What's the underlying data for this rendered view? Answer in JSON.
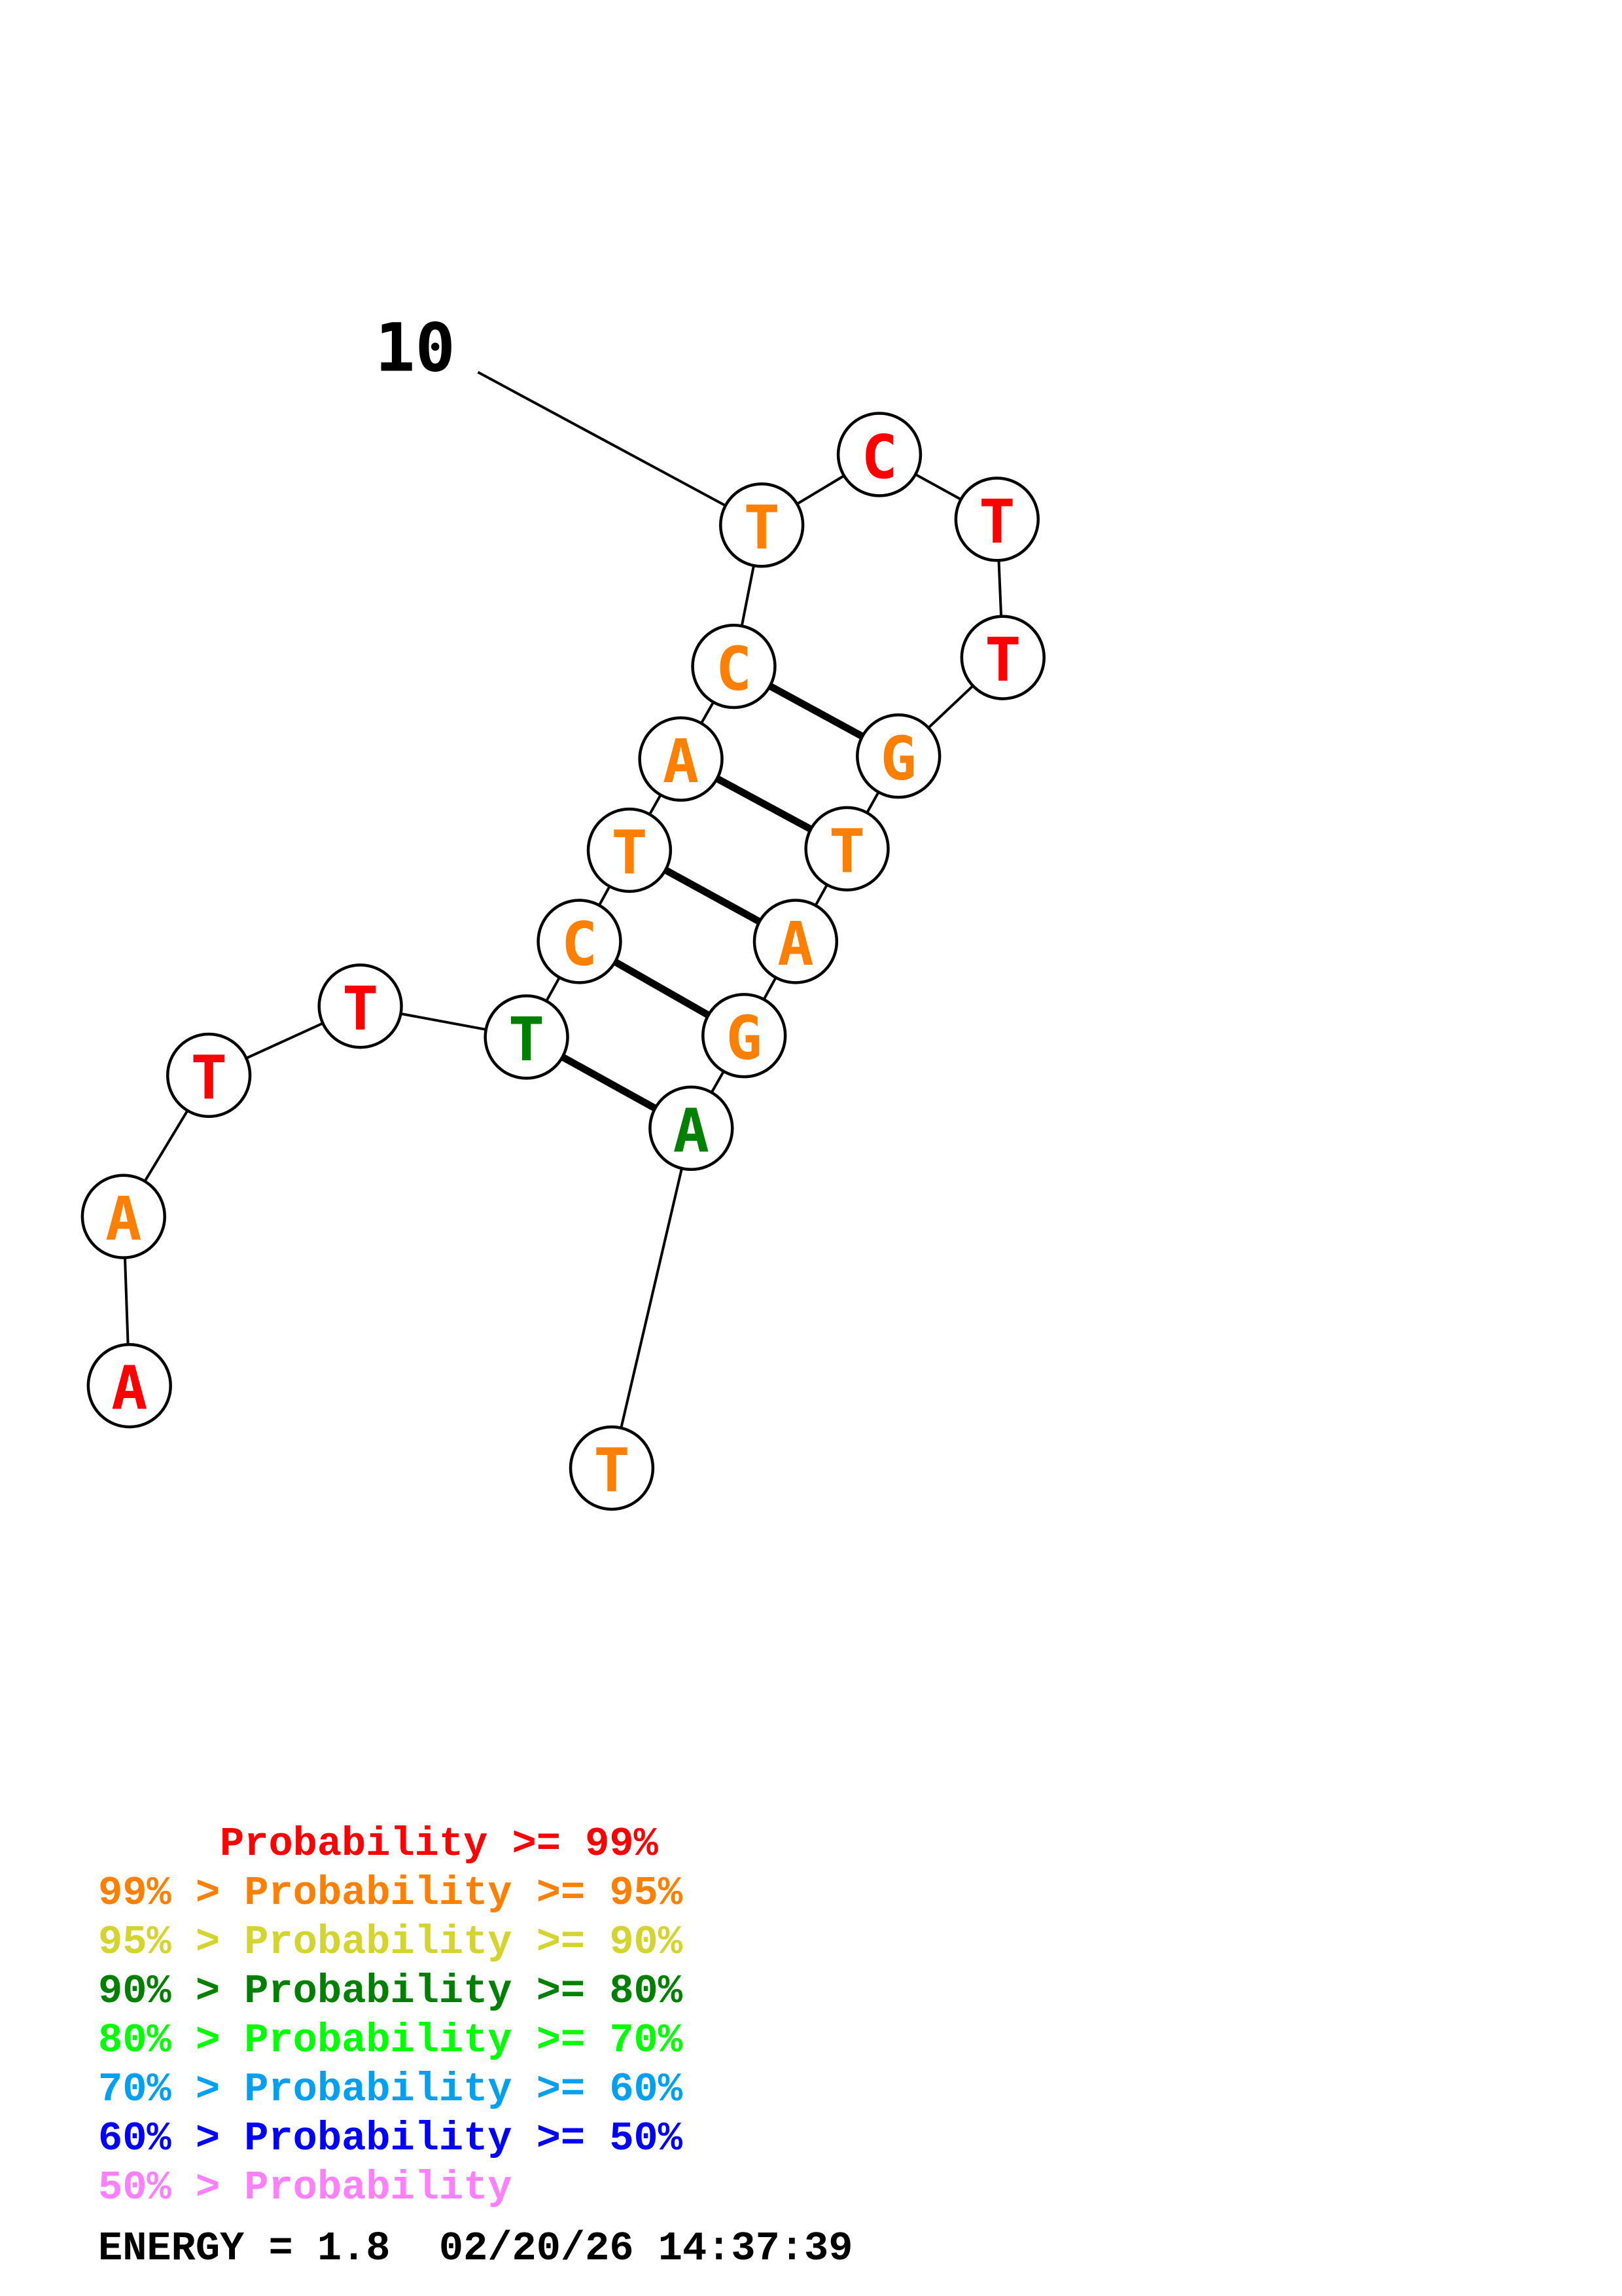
{
  "colors": {
    "p99": "#ff0000",
    "p95": "#ff8000",
    "p90": "#d4d42e",
    "p80": "#008000",
    "p70": "#00ff00",
    "p60": "#00a0f0",
    "p50": "#0000ff",
    "plow": "#ff80ff"
  },
  "sequence": [
    {
      "base": "A",
      "prob": "p99"
    },
    {
      "base": "A",
      "prob": "p95"
    },
    {
      "base": "T",
      "prob": "p99"
    },
    {
      "base": "T",
      "prob": "p99"
    },
    {
      "base": "T",
      "prob": "p80"
    },
    {
      "base": "C",
      "prob": "p95"
    },
    {
      "base": "T",
      "prob": "p95"
    },
    {
      "base": "A",
      "prob": "p95"
    },
    {
      "base": "C",
      "prob": "p95"
    },
    {
      "base": "T",
      "prob": "p95"
    },
    {
      "base": "C",
      "prob": "p99"
    },
    {
      "base": "T",
      "prob": "p99"
    },
    {
      "base": "T",
      "prob": "p99"
    },
    {
      "base": "G",
      "prob": "p95"
    },
    {
      "base": "T",
      "prob": "p95"
    },
    {
      "base": "A",
      "prob": "p95"
    },
    {
      "base": "G",
      "prob": "p95"
    },
    {
      "base": "A",
      "prob": "p80"
    },
    {
      "base": "T",
      "prob": "p95"
    }
  ],
  "pairs": [
    [
      5,
      18
    ],
    [
      6,
      17
    ],
    [
      7,
      16
    ],
    [
      8,
      15
    ],
    [
      9,
      14
    ]
  ],
  "position_labels": [
    {
      "index": 10,
      "text": "10"
    }
  ],
  "legend": [
    {
      "prob": "p99",
      "prefix": "     ",
      "text": "Probability >= 99%"
    },
    {
      "prob": "p95",
      "prefix": "99% > ",
      "text": "Probability >= 95%"
    },
    {
      "prob": "p90",
      "prefix": "95% > ",
      "text": "Probability >= 90%"
    },
    {
      "prob": "p80",
      "prefix": "90% > ",
      "text": "Probability >= 80%"
    },
    {
      "prob": "p70",
      "prefix": "80% > ",
      "text": "Probability >= 70%"
    },
    {
      "prob": "p60",
      "prefix": "70% > ",
      "text": "Probability >= 60%"
    },
    {
      "prob": "p50",
      "prefix": "60% > ",
      "text": "Probability >= 50%"
    },
    {
      "prob": "plow",
      "prefix": "50% > ",
      "text": "Probability"
    }
  ],
  "footer": {
    "energy": "ENERGY = 1.8",
    "timestamp": "02/20/26 14:37:39"
  }
}
